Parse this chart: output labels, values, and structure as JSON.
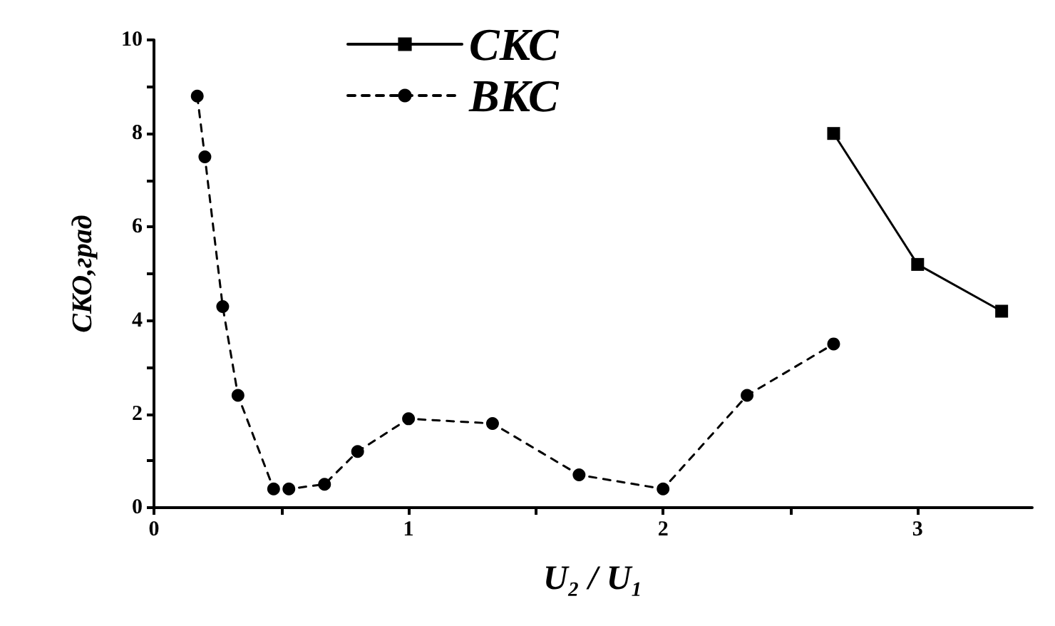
{
  "chart_data": {
    "type": "line",
    "xlabel": "U₂ / U₁",
    "ylabel": "СКО,град",
    "xlim": [
      0,
      3.45
    ],
    "xticks": [
      0,
      {
        "value": 0.5,
        "label": null
      },
      1,
      {
        "value": 1.5,
        "label": null
      },
      2,
      {
        "value": 2.5,
        "label": null
      },
      3
    ],
    "ylim": [
      0,
      10
    ],
    "yticks": [
      0,
      {
        "value": 1,
        "label": null
      },
      2,
      {
        "value": 3,
        "label": null
      },
      4,
      {
        "value": 5,
        "label": null
      },
      6,
      {
        "value": 7,
        "label": null
      },
      8,
      {
        "value": 9,
        "label": null
      },
      10
    ],
    "series": [
      {
        "name": "СКС",
        "color": "#000000",
        "marker": "square",
        "line_style": "solid",
        "x": [
          2.67,
          3.0,
          3.33
        ],
        "values": [
          8.0,
          5.2,
          4.2
        ]
      },
      {
        "name": "ВКС",
        "color": "#000000",
        "marker": "circle",
        "line_style": "dashed",
        "x": [
          0.17,
          0.2,
          0.27,
          0.33,
          0.47,
          0.53,
          0.67,
          0.8,
          1.0,
          1.33,
          1.67,
          2.0,
          2.33,
          2.67
        ],
        "values": [
          8.8,
          7.5,
          4.3,
          2.4,
          0.4,
          0.4,
          0.5,
          1.2,
          1.9,
          1.8,
          0.7,
          0.4,
          2.4,
          3.5
        ]
      }
    ],
    "grid": false,
    "legend": "top"
  }
}
